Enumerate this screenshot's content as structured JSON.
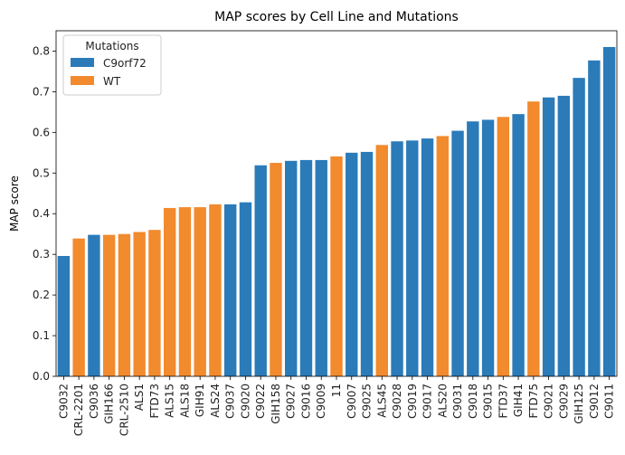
{
  "chart_data": {
    "type": "bar",
    "title": "MAP scores by Cell Line and Mutations",
    "xlabel": "",
    "ylabel": "MAP score",
    "ylim": [
      0,
      0.85
    ],
    "yticks": [
      "0.0",
      "0.1",
      "0.2",
      "0.3",
      "0.4",
      "0.5",
      "0.6",
      "0.7",
      "0.8"
    ],
    "grid": false,
    "legend": {
      "title": "Mutations",
      "placement": "top-left",
      "entries": [
        {
          "name": "C9orf72",
          "color": "#2b7bb9"
        },
        {
          "name": "WT",
          "color": "#f28a2e"
        }
      ]
    },
    "categories": [
      "C9032",
      "CRL-2201",
      "C9036",
      "GIH166",
      "CRL-2510",
      "ALS1",
      "FTD73",
      "ALS15",
      "ALS18",
      "GIH91",
      "ALS24",
      "C9037",
      "C9020",
      "C9022",
      "GIH158",
      "C9027",
      "C9016",
      "C9009",
      "11",
      "C9007",
      "C9025",
      "ALS45",
      "C9028",
      "C9019",
      "C9017",
      "ALS20",
      "C9031",
      "C9018",
      "C9015",
      "FTD37",
      "GIH41",
      "FTD75",
      "C9021",
      "C9029",
      "GIH125",
      "C9012",
      "C9011"
    ],
    "values": [
      0.296,
      0.339,
      0.348,
      0.348,
      0.35,
      0.355,
      0.36,
      0.414,
      0.416,
      0.416,
      0.423,
      0.423,
      0.428,
      0.519,
      0.525,
      0.53,
      0.532,
      0.532,
      0.541,
      0.55,
      0.552,
      0.569,
      0.578,
      0.58,
      0.585,
      0.591,
      0.604,
      0.627,
      0.631,
      0.638,
      0.645,
      0.676,
      0.686,
      0.69,
      0.734,
      0.777,
      0.81
    ],
    "groups": [
      "C9orf72",
      "WT",
      "C9orf72",
      "WT",
      "WT",
      "WT",
      "WT",
      "WT",
      "WT",
      "WT",
      "WT",
      "C9orf72",
      "C9orf72",
      "C9orf72",
      "WT",
      "C9orf72",
      "C9orf72",
      "C9orf72",
      "WT",
      "C9orf72",
      "C9orf72",
      "WT",
      "C9orf72",
      "C9orf72",
      "C9orf72",
      "WT",
      "C9orf72",
      "C9orf72",
      "C9orf72",
      "WT",
      "C9orf72",
      "WT",
      "C9orf72",
      "C9orf72",
      "C9orf72",
      "C9orf72",
      "C9orf72"
    ]
  }
}
